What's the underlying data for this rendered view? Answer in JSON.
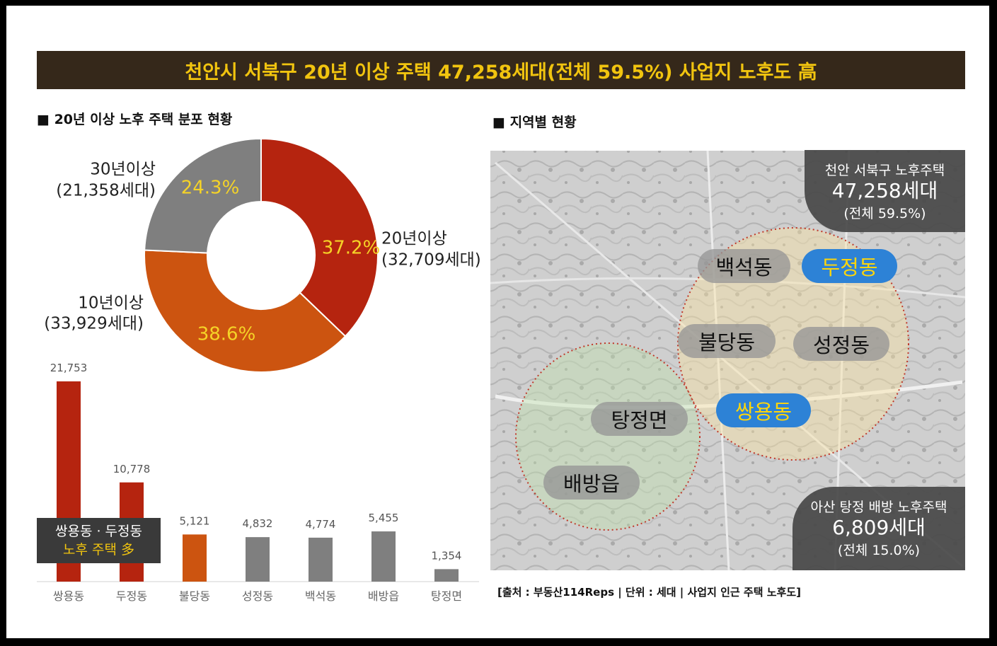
{
  "banner_title": "천안시 서북구 20년 이상 주택 47,258세대(전체 59.5%) 사업지 노후도 高",
  "left_section_title": "■ 20년 이상 노후 주택 분포 현황",
  "right_section_title": "■ 지역별 현황",
  "colors": {
    "red": "#b5240f",
    "orange": "#cc5410",
    "gray": "#7f7f7f",
    "banner_bg": "#35281a",
    "banner_text": "#f1c40f",
    "highlight": "#f1c40f"
  },
  "donut_labels": [
    {
      "name_line1": "20년이상",
      "name_line2": "(32,709세대)",
      "percent": "37.2%"
    },
    {
      "name_line1": "10년이상",
      "name_line2": "(33,929세대)",
      "percent": "38.6%"
    },
    {
      "name_line1": "30년이상",
      "name_line2": "(21,358세대)",
      "percent": "24.3%"
    }
  ],
  "bar_labels": [
    "21,753",
    "10,778",
    "5,121",
    "4,832",
    "4,774",
    "5,455",
    "1,354"
  ],
  "note_box": {
    "line1": "쌍용동 · 두정동",
    "line2": "노후 주택 多"
  },
  "map": {
    "stat_top": {
      "label": "천안 서북구 노후주택",
      "value": "47,258세대",
      "share": "(전체 59.5%)"
    },
    "stat_bottom": {
      "label": "아산 탕정 배방 노후주택",
      "value": "6,809세대",
      "share": "(전체 15.0%)"
    },
    "pills": [
      "백석동",
      "두정동",
      "불당동",
      "성정동",
      "쌍용동",
      "탕정면",
      "배방읍"
    ]
  },
  "source_note": "[출처 : 부동산114Reps | 단위 : 세대 | 사업지 인근 주택 노후도]",
  "chart_data": [
    {
      "type": "pie",
      "title": "20년 이상 노후 주택 분포 현황",
      "categories": [
        "20년이상",
        "10년이상",
        "30년이상"
      ],
      "values": [
        32709,
        33929,
        21358
      ],
      "percent_labels": [
        37.2,
        38.6,
        24.3
      ],
      "colors": [
        "#b5240f",
        "#cc5410",
        "#7f7f7f"
      ],
      "donut": true
    },
    {
      "type": "bar",
      "categories": [
        "쌍용동",
        "두정동",
        "불당동",
        "성정동",
        "백석동",
        "배방읍",
        "탕정면"
      ],
      "values": [
        21753,
        10778,
        5121,
        4832,
        4774,
        5455,
        1354
      ],
      "colors": [
        "#b5240f",
        "#b5240f",
        "#cc5410",
        "#7f7f7f",
        "#7f7f7f",
        "#7f7f7f",
        "#7f7f7f"
      ],
      "ylim": [
        0,
        21753
      ],
      "grid": false
    }
  ]
}
